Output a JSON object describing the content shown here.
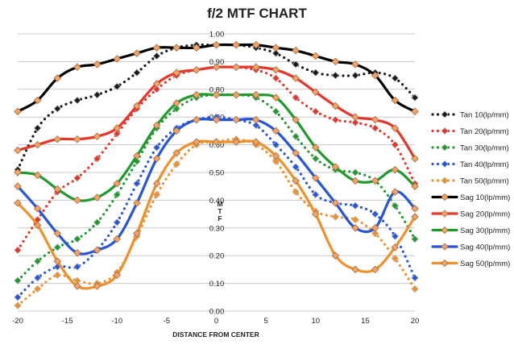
{
  "chart_data": {
    "type": "line",
    "title": "f/2 MTF CHART",
    "xlabel": "DISTANCE FROM CENTER",
    "ylabel": "MTF",
    "xlim": [
      -20,
      20
    ],
    "ylim": [
      0,
      1
    ],
    "x_ticks": [
      "-20",
      "-15",
      "-10",
      "-5",
      "0",
      "5",
      "10",
      "15",
      "20"
    ],
    "y_ticks": [
      "0.00",
      "0.10",
      "0.20",
      "0.30",
      "0.40",
      "0.50",
      "0.60",
      "0.70",
      "0.80",
      "0.90",
      "1.00"
    ],
    "grid": true,
    "legend_position": "right",
    "x": [
      -20,
      -18,
      -16,
      -14,
      -12,
      -10,
      -8,
      -6,
      -4,
      -2,
      0,
      2,
      4,
      6,
      8,
      10,
      12,
      14,
      16,
      18,
      20
    ],
    "series": [
      {
        "name": "Tan 10(lp/mm)",
        "style": "dotted",
        "marker": "diamond",
        "color": "#1a1a1a",
        "values": [
          0.51,
          0.66,
          0.73,
          0.76,
          0.78,
          0.81,
          0.86,
          0.92,
          0.95,
          0.96,
          0.96,
          0.96,
          0.95,
          0.93,
          0.89,
          0.86,
          0.85,
          0.85,
          0.86,
          0.84,
          0.77
        ]
      },
      {
        "name": "Tan 20(lp/mm)",
        "style": "dotted",
        "marker": "diamond",
        "color": "#e8352a",
        "values": [
          0.22,
          0.33,
          0.43,
          0.48,
          0.55,
          0.64,
          0.73,
          0.8,
          0.85,
          0.87,
          0.88,
          0.88,
          0.87,
          0.84,
          0.77,
          0.72,
          0.69,
          0.68,
          0.66,
          0.6,
          0.46
        ]
      },
      {
        "name": "Tan 30(lp/mm)",
        "style": "dotted",
        "marker": "diamond",
        "color": "#1f9a2e",
        "values": [
          0.11,
          0.18,
          0.23,
          0.26,
          0.32,
          0.42,
          0.54,
          0.66,
          0.73,
          0.77,
          0.78,
          0.78,
          0.77,
          0.72,
          0.63,
          0.55,
          0.51,
          0.5,
          0.47,
          0.38,
          0.26
        ]
      },
      {
        "name": "Tan 40(lp/mm)",
        "style": "dotted",
        "marker": "diamond",
        "color": "#2855d8",
        "values": [
          0.05,
          0.12,
          0.16,
          0.16,
          0.22,
          0.32,
          0.46,
          0.59,
          0.66,
          0.69,
          0.7,
          0.69,
          0.67,
          0.6,
          0.52,
          0.42,
          0.39,
          0.38,
          0.35,
          0.27,
          0.12
        ]
      },
      {
        "name": "Tan 50(lp/mm)",
        "style": "dotted",
        "marker": "diamond",
        "color": "#f0902a",
        "values": [
          0.02,
          0.08,
          0.13,
          0.11,
          0.1,
          0.14,
          0.27,
          0.42,
          0.53,
          0.6,
          0.61,
          0.62,
          0.6,
          0.54,
          0.43,
          0.36,
          0.34,
          0.33,
          0.28,
          0.19,
          0.08
        ]
      },
      {
        "name": "Sag 10(lp/mm)",
        "style": "solid",
        "marker": "diamond",
        "color": "#000000",
        "values": [
          0.72,
          0.76,
          0.84,
          0.88,
          0.89,
          0.91,
          0.93,
          0.95,
          0.95,
          0.95,
          0.96,
          0.96,
          0.96,
          0.95,
          0.94,
          0.92,
          0.9,
          0.89,
          0.85,
          0.76,
          0.72
        ]
      },
      {
        "name": "Sag 20(lp/mm)",
        "style": "solid",
        "marker": "diamond",
        "color": "#e8352a",
        "values": [
          0.58,
          0.6,
          0.62,
          0.62,
          0.63,
          0.66,
          0.74,
          0.82,
          0.86,
          0.87,
          0.88,
          0.88,
          0.88,
          0.87,
          0.84,
          0.79,
          0.74,
          0.7,
          0.69,
          0.66,
          0.55
        ]
      },
      {
        "name": "Sag 30(lp/mm)",
        "style": "solid",
        "marker": "diamond",
        "color": "#1f9a2e",
        "values": [
          0.5,
          0.49,
          0.44,
          0.4,
          0.41,
          0.46,
          0.56,
          0.67,
          0.75,
          0.78,
          0.78,
          0.78,
          0.78,
          0.77,
          0.69,
          0.59,
          0.52,
          0.47,
          0.47,
          0.51,
          0.45
        ]
      },
      {
        "name": "Sag 40(lp/mm)",
        "style": "solid",
        "marker": "diamond",
        "color": "#2855d8",
        "values": [
          0.45,
          0.37,
          0.28,
          0.21,
          0.22,
          0.26,
          0.39,
          0.55,
          0.65,
          0.69,
          0.69,
          0.69,
          0.69,
          0.65,
          0.57,
          0.48,
          0.39,
          0.3,
          0.3,
          0.43,
          0.37
        ]
      },
      {
        "name": "Sag 50(lp/mm)",
        "style": "solid",
        "marker": "diamond",
        "color": "#f0902a",
        "values": [
          0.39,
          0.31,
          0.18,
          0.09,
          0.09,
          0.13,
          0.28,
          0.46,
          0.57,
          0.61,
          0.61,
          0.61,
          0.61,
          0.56,
          0.47,
          0.35,
          0.2,
          0.15,
          0.15,
          0.23,
          0.34
        ]
      }
    ]
  }
}
